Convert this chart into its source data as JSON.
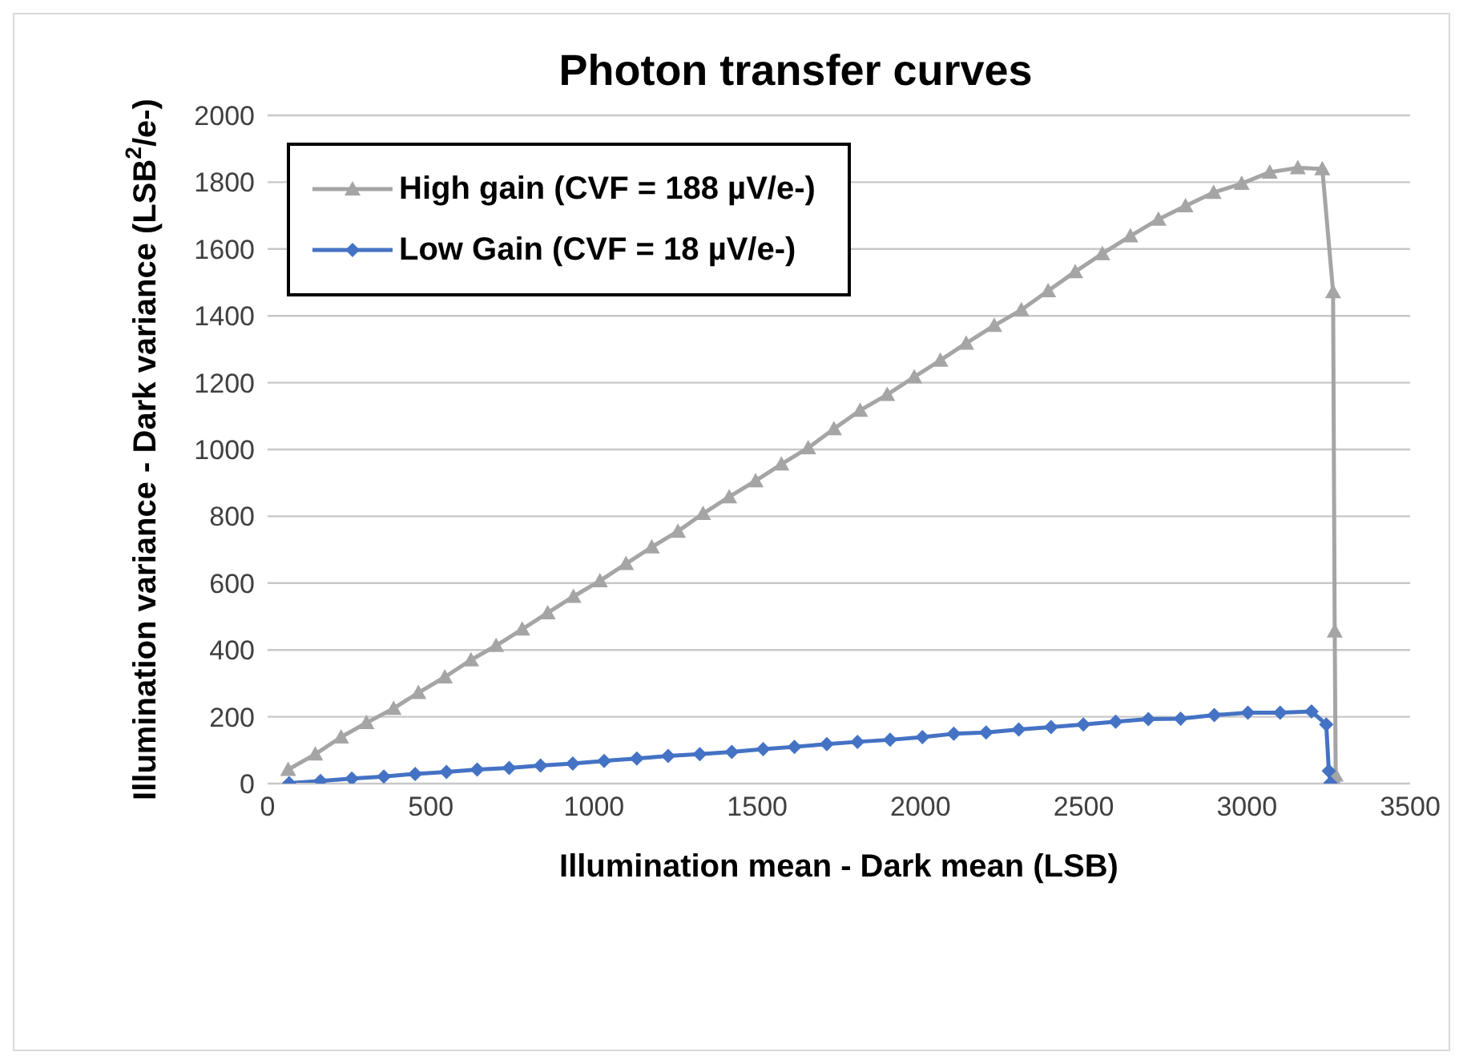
{
  "chart_data": {
    "type": "line",
    "title": "Photon transfer curves",
    "xlabel": "Illumination mean - Dark mean (LSB)",
    "ylabel": "Illumination variance - Dark variance  (LSB$^{2}$/e-)",
    "xlim": [
      0,
      3500
    ],
    "xticks": [
      0,
      500,
      1000,
      1500,
      2000,
      2500,
      3000,
      3500
    ],
    "ylim": [
      0,
      2000
    ],
    "yticks": [
      0,
      200,
      400,
      600,
      800,
      1000,
      1200,
      1400,
      1600,
      1800,
      2000
    ],
    "grid": "y",
    "legend": "top left",
    "series": [
      {
        "name": "High gain (CVF = 188 µV/e-)",
        "color": "#a5a5a5",
        "marker": "triangle",
        "x": [
          63,
          146,
          225,
          303,
          386,
          462,
          543,
          623,
          700,
          780,
          858,
          937,
          1018,
          1098,
          1177,
          1257,
          1334,
          1414,
          1495,
          1574,
          1656,
          1735,
          1815,
          1898,
          1981,
          2061,
          2140,
          2226,
          2309,
          2391,
          2474,
          2557,
          2643,
          2729,
          2812,
          2898,
          2984,
          3070,
          3156,
          3231,
          3264,
          3269,
          3272,
          3274
        ],
        "values": [
          42,
          88,
          139,
          182,
          225,
          272,
          319,
          370,
          413,
          462,
          511,
          560,
          607,
          658,
          708,
          755,
          808,
          858,
          906,
          956,
          1005,
          1062,
          1117,
          1164,
          1217,
          1267,
          1318,
          1371,
          1418,
          1475,
          1532,
          1586,
          1639,
          1689,
          1729,
          1769,
          1796,
          1830,
          1843,
          1840,
          1472,
          456,
          25,
          0
        ]
      },
      {
        "name": "Low Gain (CVF = 18 µV/e-)",
        "color": "#4472c4",
        "marker": "diamond",
        "x": [
          66,
          162,
          258,
          356,
          452,
          548,
          642,
          740,
          836,
          935,
          1031,
          1131,
          1227,
          1324,
          1422,
          1518,
          1614,
          1713,
          1807,
          1907,
          2006,
          2102,
          2201,
          2301,
          2400,
          2499,
          2598,
          2698,
          2797,
          2900,
          3003,
          3102,
          3198,
          3243,
          3251,
          3256
        ],
        "values": [
          1,
          8,
          15,
          21,
          29,
          35,
          42,
          47,
          54,
          60,
          68,
          75,
          83,
          88,
          95,
          103,
          110,
          118,
          125,
          131,
          139,
          149,
          153,
          162,
          169,
          177,
          185,
          193,
          194,
          205,
          212,
          212,
          216,
          177,
          38,
          2
        ]
      }
    ]
  }
}
